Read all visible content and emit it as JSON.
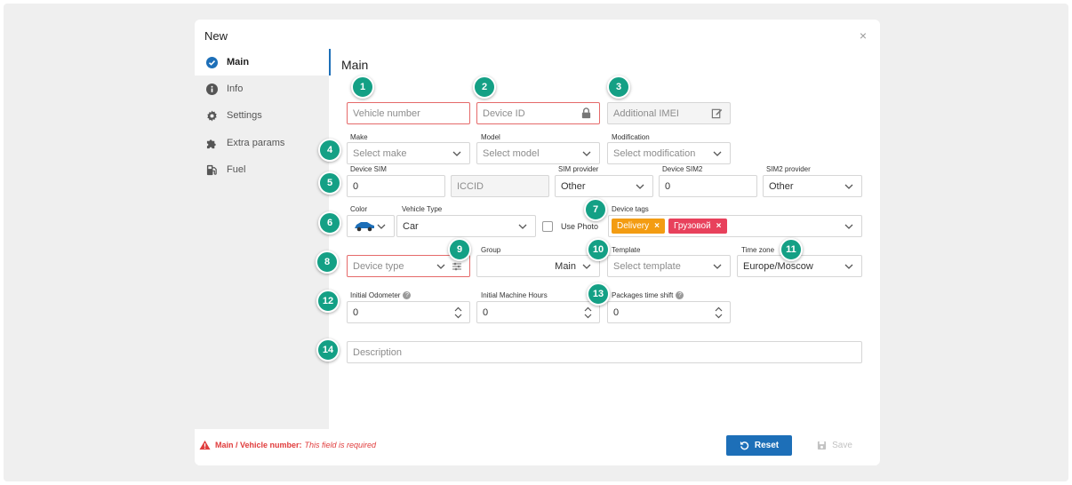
{
  "window": {
    "title": "New",
    "close_symbol": "×"
  },
  "sidebar": {
    "items": [
      {
        "label": "Main",
        "icon": "check-circle-icon",
        "active": true
      },
      {
        "label": "Info",
        "icon": "info-icon",
        "active": false
      },
      {
        "label": "Settings",
        "icon": "gear-icon",
        "active": false
      },
      {
        "label": "Extra params",
        "icon": "puzzle-icon",
        "active": false
      },
      {
        "label": "Fuel",
        "icon": "fuel-icon",
        "active": false
      }
    ]
  },
  "main": {
    "section_title": "Main",
    "vehicle_number": {
      "placeholder": "Vehicle number"
    },
    "device_id": {
      "placeholder": "Device ID"
    },
    "additional_imei": {
      "placeholder": "Additional IMEI"
    },
    "make": {
      "label": "Make",
      "placeholder": "Select make"
    },
    "model": {
      "label": "Model",
      "placeholder": "Select model"
    },
    "modification": {
      "label": "Modification",
      "placeholder": "Select modification"
    },
    "device_sim": {
      "label": "Device SIM",
      "value": "0"
    },
    "iccid": {
      "placeholder": "ICCID"
    },
    "sim_provider": {
      "label": "SIM provider",
      "value": "Other"
    },
    "device_sim2": {
      "label": "Device SIM2",
      "value": "0"
    },
    "sim2_provider": {
      "label": "SIM2 provider",
      "value": "Other"
    },
    "color": {
      "label": "Color"
    },
    "vehicle_type": {
      "label": "Vehicle Type",
      "value": "Car"
    },
    "use_photo": {
      "label": "Use Photo",
      "checked": false
    },
    "device_tags": {
      "label": "Device tags",
      "tags": [
        {
          "text": "Delivery",
          "color": "#f39c12"
        },
        {
          "text": "Грузовой",
          "color": "#e8415c"
        }
      ],
      "remove_symbol": "×"
    },
    "device_type": {
      "placeholder": "Device type"
    },
    "group": {
      "label": "Group",
      "value": "Main"
    },
    "template": {
      "label": "Template",
      "placeholder": "Select template"
    },
    "time_zone": {
      "label": "Time zone",
      "value": "Europe/Moscow"
    },
    "initial_odometer": {
      "label": "Initial Odometer",
      "value": "0"
    },
    "initial_machine_hours": {
      "label": "Initial Machine Hours",
      "value": "0"
    },
    "packages_time_shift": {
      "label": "Packages time shift",
      "value": "0"
    },
    "description": {
      "placeholder": "Description"
    },
    "help_symbol": "?"
  },
  "badges": [
    "1",
    "2",
    "3",
    "4",
    "5",
    "6",
    "7",
    "8",
    "9",
    "10",
    "11",
    "12",
    "13",
    "14"
  ],
  "footer": {
    "error_path": "Main / Vehicle number:",
    "error_message": "This field is required",
    "reset_label": "Reset",
    "save_label": "Save"
  },
  "colors": {
    "accent": "#1d6fb8",
    "error": "#e03c3c",
    "badge": "#14a085",
    "vehicle_color": "#1d6fb8"
  }
}
